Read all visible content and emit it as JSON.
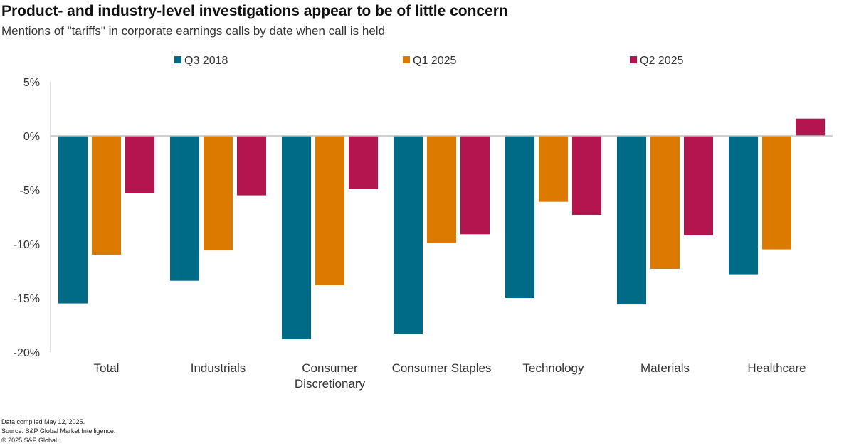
{
  "header": {
    "title": "Product- and industry-level investigations appear to be of little concern",
    "subtitle": "Mentions of \"tariffs\" in corporate earnings calls by date when call is held"
  },
  "footer": {
    "notes": [
      "Data compiled May 12, 2025.",
      "Source: S&P Global Market Intelligence.",
      "© 2025 S&P Global."
    ]
  },
  "chart_data": {
    "type": "bar",
    "title": "Product- and industry-level investigations appear to be of little concern",
    "subtitle": "Mentions of \"tariffs\" in corporate earnings calls by date when call is held",
    "xlabel": "",
    "ylabel": "",
    "ylim": [
      -20,
      5
    ],
    "yticks": [
      5,
      0,
      -5,
      -10,
      -15,
      -20
    ],
    "ytick_labels": [
      "5%",
      "0%",
      "-5%",
      "-10%",
      "-15%",
      "-20%"
    ],
    "grid": false,
    "legend_position": "top",
    "categories": [
      [
        "Total"
      ],
      [
        "Industrials"
      ],
      [
        "Consumer",
        "Discretionary"
      ],
      [
        "Consumer Staples"
      ],
      [
        "Technology"
      ],
      [
        "Materials"
      ],
      [
        "Healthcare"
      ]
    ],
    "series": [
      {
        "name": "Q3 2018",
        "color": "#006b87",
        "values": [
          -15.5,
          -13.4,
          -18.8,
          -18.3,
          -15.0,
          -15.6,
          -12.8
        ]
      },
      {
        "name": "Q1 2025",
        "color": "#dc7a00",
        "values": [
          -11.0,
          -10.6,
          -13.8,
          -9.9,
          -6.1,
          -12.3,
          -10.5
        ]
      },
      {
        "name": "Q2 2025",
        "color": "#b5154f",
        "values": [
          -5.3,
          -5.5,
          -4.9,
          -9.1,
          -7.3,
          -9.2,
          1.6
        ]
      }
    ]
  }
}
